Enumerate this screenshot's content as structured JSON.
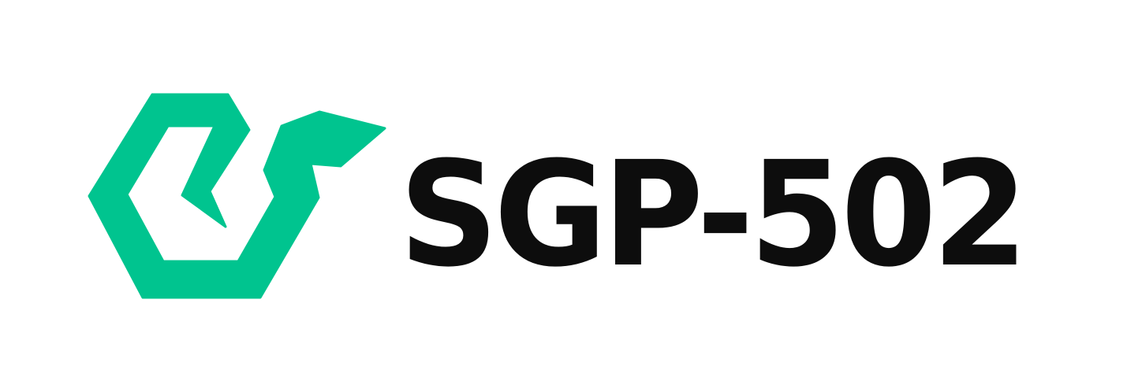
{
  "logo": {
    "wordmark": "SGP-502",
    "icon": "hexagonal-snake-icon",
    "colors": {
      "brand_green": "#00c48f",
      "text": "#0d0d0d",
      "background": "#ffffff"
    }
  }
}
